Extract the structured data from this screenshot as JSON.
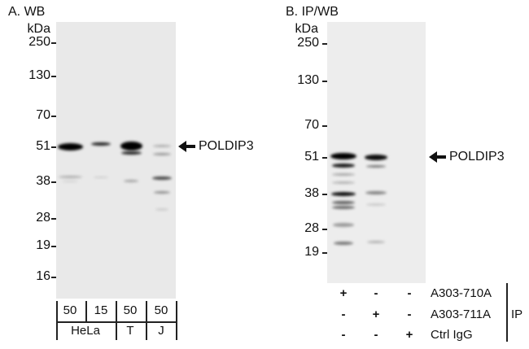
{
  "panel_a": {
    "title": "A. WB",
    "unit": "kDa",
    "markers": [
      "250",
      "130",
      "70",
      "51",
      "38",
      "28",
      "19",
      "16"
    ],
    "target_label": "POLDIP3",
    "lane_amounts": [
      "50",
      "15",
      "50",
      "50"
    ],
    "cell_lines": [
      "HeLa",
      "T",
      "J"
    ]
  },
  "panel_b": {
    "title": "B. IP/WB",
    "unit": "kDa",
    "markers": [
      "250",
      "130",
      "70",
      "51",
      "38",
      "28",
      "19"
    ],
    "target_label": "POLDIP3",
    "rows": [
      {
        "label": "A303-710A",
        "signs": [
          "+",
          "-",
          "-"
        ]
      },
      {
        "label": "A303-711A",
        "signs": [
          "-",
          "+",
          "-"
        ]
      },
      {
        "label": "Ctrl IgG",
        "signs": [
          "-",
          "-",
          "+"
        ]
      }
    ],
    "group_label": "IP"
  }
}
